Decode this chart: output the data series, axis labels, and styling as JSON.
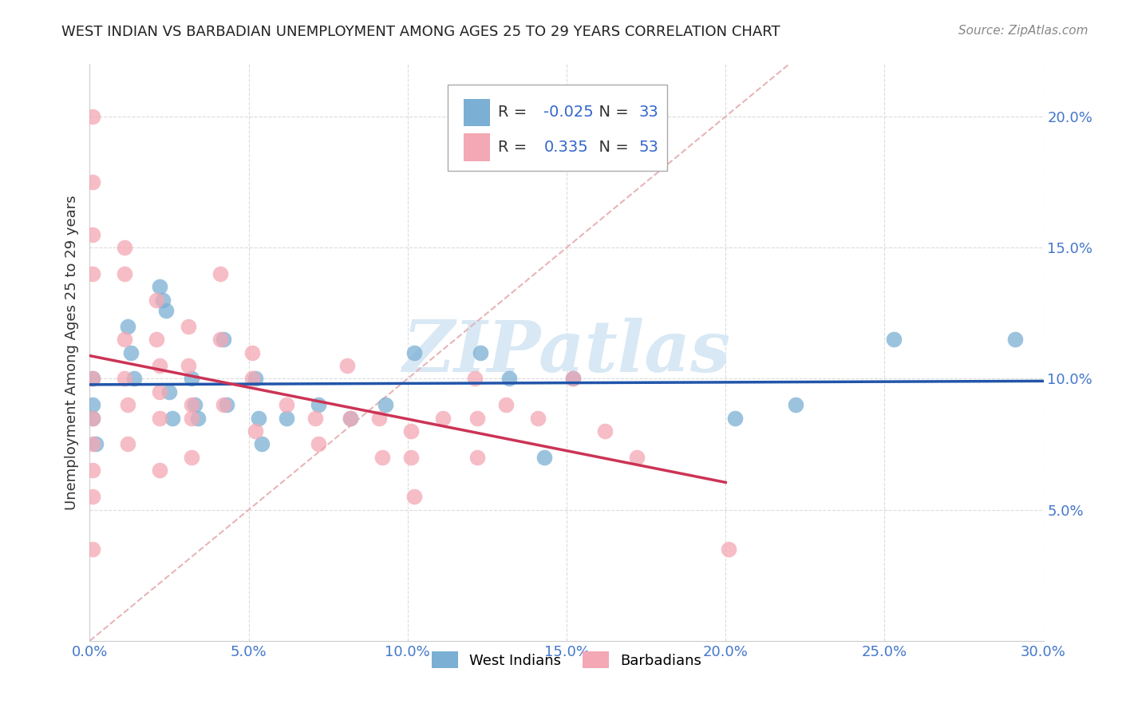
{
  "title": "WEST INDIAN VS BARBADIAN UNEMPLOYMENT AMONG AGES 25 TO 29 YEARS CORRELATION CHART",
  "source": "Source: ZipAtlas.com",
  "ylabel": "Unemployment Among Ages 25 to 29 years",
  "xlim": [
    0.0,
    0.3
  ],
  "ylim": [
    0.0,
    0.22
  ],
  "xticks": [
    0.0,
    0.05,
    0.1,
    0.15,
    0.2,
    0.25,
    0.3
  ],
  "yticks": [
    0.05,
    0.1,
    0.15,
    0.2
  ],
  "ytick_labels": [
    "5.0%",
    "10.0%",
    "15.0%",
    "20.0%"
  ],
  "xtick_labels": [
    "0.0%",
    "5.0%",
    "10.0%",
    "15.0%",
    "20.0%",
    "25.0%",
    "30.0%"
  ],
  "legend_blue_r": "-0.025",
  "legend_blue_n": "33",
  "legend_pink_r": "0.335",
  "legend_pink_n": "53",
  "blue_color": "#7BAFD4",
  "pink_color": "#F4A7B4",
  "blue_line_color": "#2255AA",
  "pink_line_color": "#CC3355",
  "diag_line_color": "#E8B4B8",
  "watermark_text": "ZIPatlas",
  "watermark_color": "#D8E8F4",
  "blue_scatter_x": [
    0.001,
    0.001,
    0.001,
    0.002,
    0.012,
    0.013,
    0.014,
    0.022,
    0.023,
    0.024,
    0.025,
    0.026,
    0.032,
    0.033,
    0.034,
    0.042,
    0.043,
    0.052,
    0.053,
    0.054,
    0.062,
    0.072,
    0.082,
    0.093,
    0.102,
    0.123,
    0.132,
    0.143,
    0.152,
    0.203,
    0.222,
    0.253,
    0.291
  ],
  "blue_scatter_y": [
    0.1,
    0.09,
    0.085,
    0.075,
    0.12,
    0.11,
    0.1,
    0.135,
    0.13,
    0.126,
    0.095,
    0.085,
    0.1,
    0.09,
    0.085,
    0.115,
    0.09,
    0.1,
    0.085,
    0.075,
    0.085,
    0.09,
    0.085,
    0.09,
    0.11,
    0.11,
    0.1,
    0.07,
    0.1,
    0.085,
    0.09,
    0.115,
    0.115
  ],
  "pink_scatter_x": [
    0.001,
    0.001,
    0.001,
    0.001,
    0.001,
    0.001,
    0.001,
    0.001,
    0.001,
    0.001,
    0.011,
    0.011,
    0.011,
    0.011,
    0.012,
    0.012,
    0.021,
    0.021,
    0.022,
    0.022,
    0.022,
    0.022,
    0.031,
    0.031,
    0.032,
    0.032,
    0.032,
    0.041,
    0.041,
    0.042,
    0.051,
    0.051,
    0.052,
    0.062,
    0.071,
    0.072,
    0.081,
    0.082,
    0.091,
    0.092,
    0.101,
    0.101,
    0.102,
    0.111,
    0.121,
    0.122,
    0.122,
    0.131,
    0.141,
    0.152,
    0.162,
    0.172,
    0.201
  ],
  "pink_scatter_y": [
    0.2,
    0.175,
    0.155,
    0.14,
    0.1,
    0.085,
    0.075,
    0.065,
    0.055,
    0.035,
    0.15,
    0.14,
    0.115,
    0.1,
    0.09,
    0.075,
    0.13,
    0.115,
    0.105,
    0.095,
    0.085,
    0.065,
    0.12,
    0.105,
    0.09,
    0.085,
    0.07,
    0.14,
    0.115,
    0.09,
    0.11,
    0.1,
    0.08,
    0.09,
    0.085,
    0.075,
    0.105,
    0.085,
    0.085,
    0.07,
    0.08,
    0.07,
    0.055,
    0.085,
    0.1,
    0.085,
    0.07,
    0.09,
    0.085,
    0.1,
    0.08,
    0.07,
    0.035
  ],
  "background_color": "#FFFFFF",
  "grid_color": "#CCCCCC"
}
